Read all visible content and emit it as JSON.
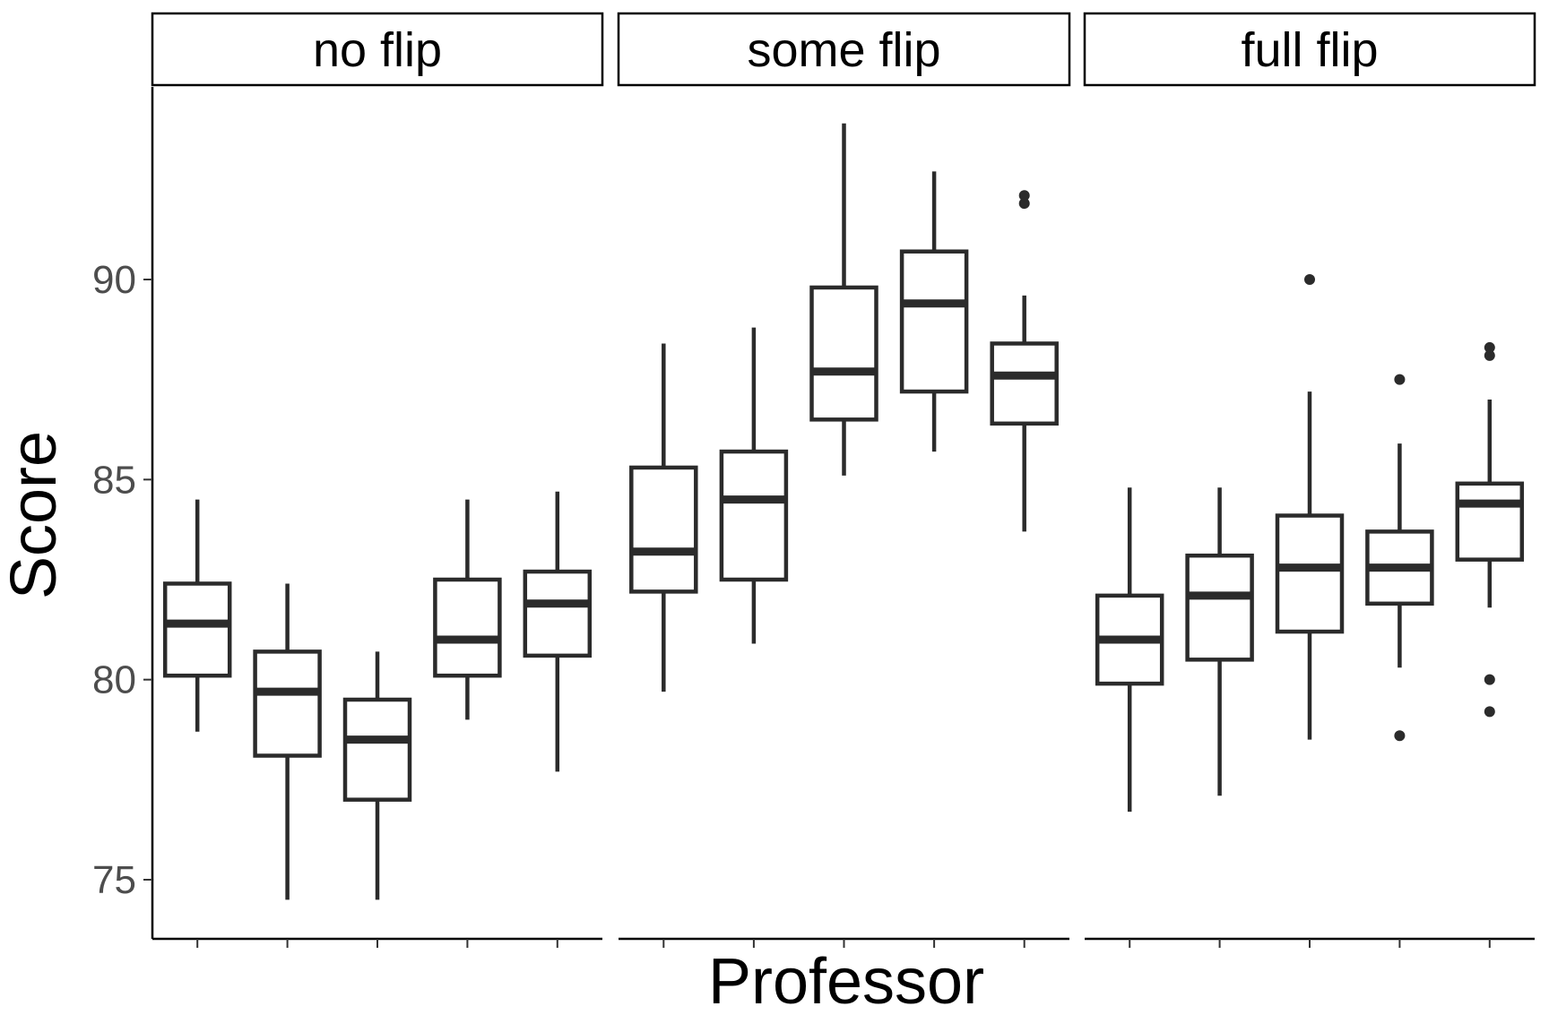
{
  "chart_data": {
    "type": "box",
    "xlabel": "Professor",
    "ylabel": "Score",
    "ylim": [
      73.5,
      95.2
    ],
    "yticks": [
      75,
      80,
      85,
      90
    ],
    "grid": false,
    "box_color": "#2b2b2b",
    "panels": [
      {
        "label": "no flip",
        "boxes": [
          {
            "whisker_low": 78.7,
            "q1": 80.1,
            "median": 81.4,
            "q3": 82.4,
            "whisker_high": 84.5,
            "outliers": []
          },
          {
            "whisker_low": 74.5,
            "q1": 78.1,
            "median": 79.7,
            "q3": 80.7,
            "whisker_high": 82.4,
            "outliers": []
          },
          {
            "whisker_low": 74.5,
            "q1": 77.0,
            "median": 78.5,
            "q3": 79.5,
            "whisker_high": 80.7,
            "outliers": []
          },
          {
            "whisker_low": 79.0,
            "q1": 80.1,
            "median": 81.0,
            "q3": 82.5,
            "whisker_high": 84.5,
            "outliers": []
          },
          {
            "whisker_low": 77.7,
            "q1": 80.6,
            "median": 81.9,
            "q3": 82.7,
            "whisker_high": 84.7,
            "outliers": []
          }
        ]
      },
      {
        "label": "some flip",
        "boxes": [
          {
            "whisker_low": 79.7,
            "q1": 82.2,
            "median": 83.2,
            "q3": 85.3,
            "whisker_high": 88.4,
            "outliers": []
          },
          {
            "whisker_low": 80.9,
            "q1": 82.5,
            "median": 84.5,
            "q3": 85.7,
            "whisker_high": 88.8,
            "outliers": []
          },
          {
            "whisker_low": 85.1,
            "q1": 86.5,
            "median": 87.7,
            "q3": 89.8,
            "whisker_high": 93.9,
            "outliers": []
          },
          {
            "whisker_low": 85.7,
            "q1": 87.2,
            "median": 89.4,
            "q3": 90.7,
            "whisker_high": 92.7,
            "outliers": []
          },
          {
            "whisker_low": 83.7,
            "q1": 86.4,
            "median": 87.6,
            "q3": 88.4,
            "whisker_high": 89.6,
            "outliers": [
              91.9,
              92.1
            ]
          }
        ]
      },
      {
        "label": "full flip",
        "boxes": [
          {
            "whisker_low": 76.7,
            "q1": 79.9,
            "median": 81.0,
            "q3": 82.1,
            "whisker_high": 84.8,
            "outliers": []
          },
          {
            "whisker_low": 77.1,
            "q1": 80.5,
            "median": 82.1,
            "q3": 83.1,
            "whisker_high": 84.8,
            "outliers": []
          },
          {
            "whisker_low": 78.5,
            "q1": 81.2,
            "median": 82.8,
            "q3": 84.1,
            "whisker_high": 87.2,
            "outliers": [
              90.0
            ]
          },
          {
            "whisker_low": 80.3,
            "q1": 81.9,
            "median": 82.8,
            "q3": 83.7,
            "whisker_high": 85.9,
            "outliers": [
              78.6,
              87.5
            ]
          },
          {
            "whisker_low": 81.8,
            "q1": 83.0,
            "median": 84.4,
            "q3": 84.9,
            "whisker_high": 87.0,
            "outliers": [
              79.2,
              80.0,
              88.1,
              88.3
            ]
          }
        ]
      }
    ]
  }
}
